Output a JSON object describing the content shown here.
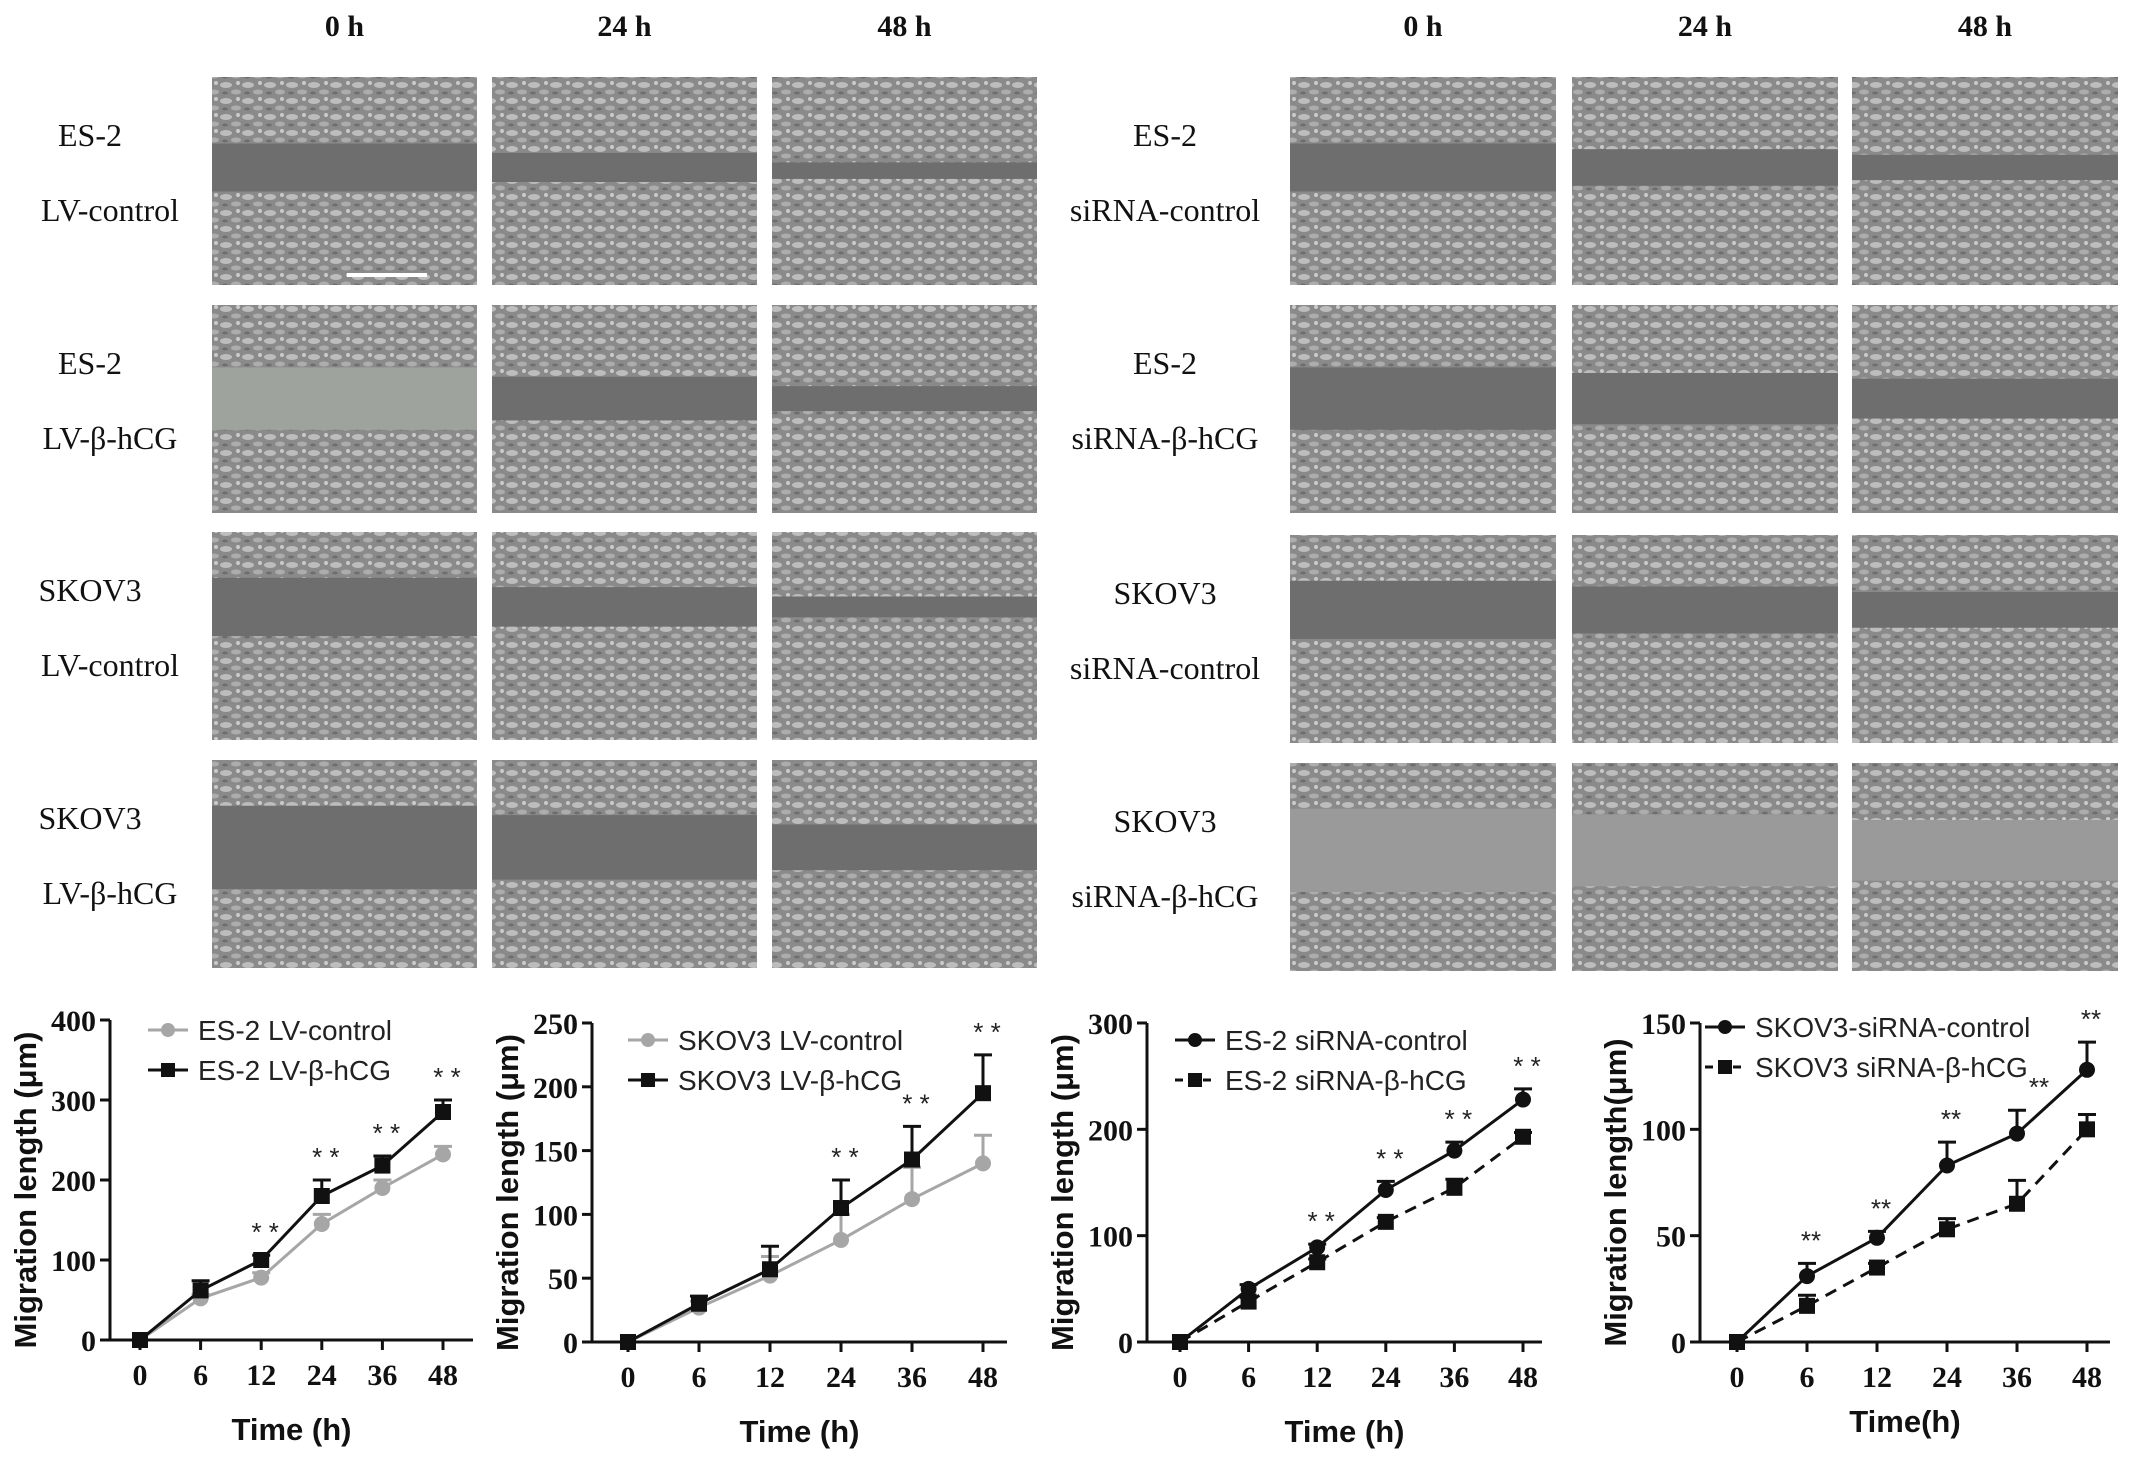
{
  "figure": {
    "left_panel": {
      "column_headers": [
        "0 h",
        "24 h",
        "48 h"
      ],
      "rows": [
        {
          "line1": "ES-2",
          "line2": "LV-control"
        },
        {
          "line1": "ES-2",
          "line2": "LV-β-hCG"
        },
        {
          "line1": "SKOV3",
          "line2": "LV-control"
        },
        {
          "line1": "SKOV3",
          "line2": "LV-β-hCG"
        }
      ]
    },
    "right_panel": {
      "column_headers": [
        "0 h",
        "24 h",
        "48 h"
      ],
      "rows": [
        {
          "line1": "ES-2",
          "line2": "siRNA-control"
        },
        {
          "line1": "ES-2",
          "line2": "siRNA-β-hCG"
        },
        {
          "line1": "SKOV3",
          "line2": "siRNA-control"
        },
        {
          "line1": "SKOV3",
          "line2": "siRNA-β-hCG"
        }
      ]
    },
    "colors": {
      "gray_series": "#a6a6a6",
      "black_series": "#111111",
      "micrograph": "#6e6e6e"
    }
  },
  "chart_data": [
    {
      "type": "line",
      "xlabel": "Time (h)",
      "ylabel": "Migration length (μm)",
      "categories": [
        "0",
        "6",
        "12",
        "24",
        "36",
        "48"
      ],
      "ylim": [
        0,
        400
      ],
      "yticks": [
        0,
        100,
        200,
        300,
        400
      ],
      "legend_position": "top-left",
      "series": [
        {
          "name": "ES-2 LV-control",
          "values": [
            0,
            52,
            78,
            145,
            190,
            232
          ],
          "errors": [
            0,
            5,
            6,
            12,
            10,
            10
          ],
          "color": "#a6a6a6",
          "marker": "circle",
          "dash": false
        },
        {
          "name": "ES-2 LV-β-hCG",
          "values": [
            0,
            62,
            100,
            180,
            218,
            285
          ],
          "errors": [
            0,
            12,
            6,
            20,
            12,
            15
          ],
          "color": "#111111",
          "marker": "square",
          "dash": false
        }
      ],
      "significance": [
        {
          "x": "12",
          "label": "* *"
        },
        {
          "x": "24",
          "label": "* *"
        },
        {
          "x": "36",
          "label": "* *"
        },
        {
          "x": "48",
          "label": "* *"
        }
      ]
    },
    {
      "type": "line",
      "xlabel": "Time (h)",
      "ylabel": "Migration length (μm)",
      "categories": [
        "0",
        "6",
        "12",
        "24",
        "36",
        "48"
      ],
      "ylim": [
        0,
        250
      ],
      "yticks": [
        0,
        50,
        100,
        150,
        200,
        250
      ],
      "legend_position": "top-left",
      "series": [
        {
          "name": "SKOV3 LV-control",
          "values": [
            0,
            27,
            52,
            80,
            112,
            140
          ],
          "errors": [
            0,
            5,
            15,
            20,
            25,
            22
          ],
          "color": "#a6a6a6",
          "marker": "circle",
          "dash": false
        },
        {
          "name": "SKOV3 LV-β-hCG",
          "values": [
            0,
            30,
            57,
            105,
            143,
            195
          ],
          "errors": [
            0,
            6,
            18,
            22,
            26,
            30
          ],
          "color": "#111111",
          "marker": "square",
          "dash": false
        }
      ],
      "significance": [
        {
          "x": "24",
          "label": "* *"
        },
        {
          "x": "36",
          "label": "* *"
        },
        {
          "x": "48",
          "label": "* *"
        }
      ]
    },
    {
      "type": "line",
      "xlabel": "Time (h)",
      "ylabel": "Migration length (μm)",
      "categories": [
        "0",
        "6",
        "12",
        "24",
        "36",
        "48"
      ],
      "ylim": [
        0,
        300
      ],
      "yticks": [
        0,
        100,
        200,
        300
      ],
      "legend_position": "top-left",
      "series": [
        {
          "name": "ES-2 siRNA-control",
          "values": [
            0,
            50,
            89,
            143,
            180,
            228
          ],
          "errors": [
            0,
            4,
            3,
            8,
            8,
            10
          ],
          "color": "#111111",
          "marker": "circle",
          "dash": false
        },
        {
          "name": "ES-2 siRNA-β-hCG",
          "values": [
            0,
            38,
            75,
            113,
            145,
            193
          ],
          "errors": [
            0,
            4,
            3,
            4,
            8,
            4
          ],
          "color": "#111111",
          "marker": "square",
          "dash": true
        }
      ],
      "significance": [
        {
          "x": "12",
          "label": "* *"
        },
        {
          "x": "24",
          "label": "* *"
        },
        {
          "x": "36",
          "label": "* *"
        },
        {
          "x": "48",
          "label": "* *"
        }
      ]
    },
    {
      "type": "line",
      "xlabel": "Time(h)",
      "ylabel": "Migration length(μm)",
      "categories": [
        "0",
        "6",
        "12",
        "24",
        "36",
        "48"
      ],
      "ylim": [
        0,
        150
      ],
      "yticks": [
        0,
        50,
        100,
        150
      ],
      "legend_position": "top-left",
      "series": [
        {
          "name": "SKOV3-siRNA-control",
          "values": [
            0,
            31,
            49,
            83,
            98,
            128
          ],
          "errors": [
            0,
            6,
            3,
            11,
            11,
            13
          ],
          "color": "#111111",
          "marker": "circle",
          "dash": false
        },
        {
          "name": "SKOV3 siRNA-β-hCG",
          "values": [
            0,
            17,
            35,
            53,
            65,
            100
          ],
          "errors": [
            0,
            5,
            2,
            5,
            11,
            7
          ],
          "color": "#111111",
          "marker": "square",
          "dash": true
        }
      ],
      "significance": [
        {
          "x": "6",
          "label": "**"
        },
        {
          "x": "12",
          "label": "**"
        },
        {
          "x": "24",
          "label": "**"
        },
        {
          "x": "36",
          "label": "**"
        },
        {
          "x": "48",
          "label": "**"
        }
      ]
    }
  ]
}
